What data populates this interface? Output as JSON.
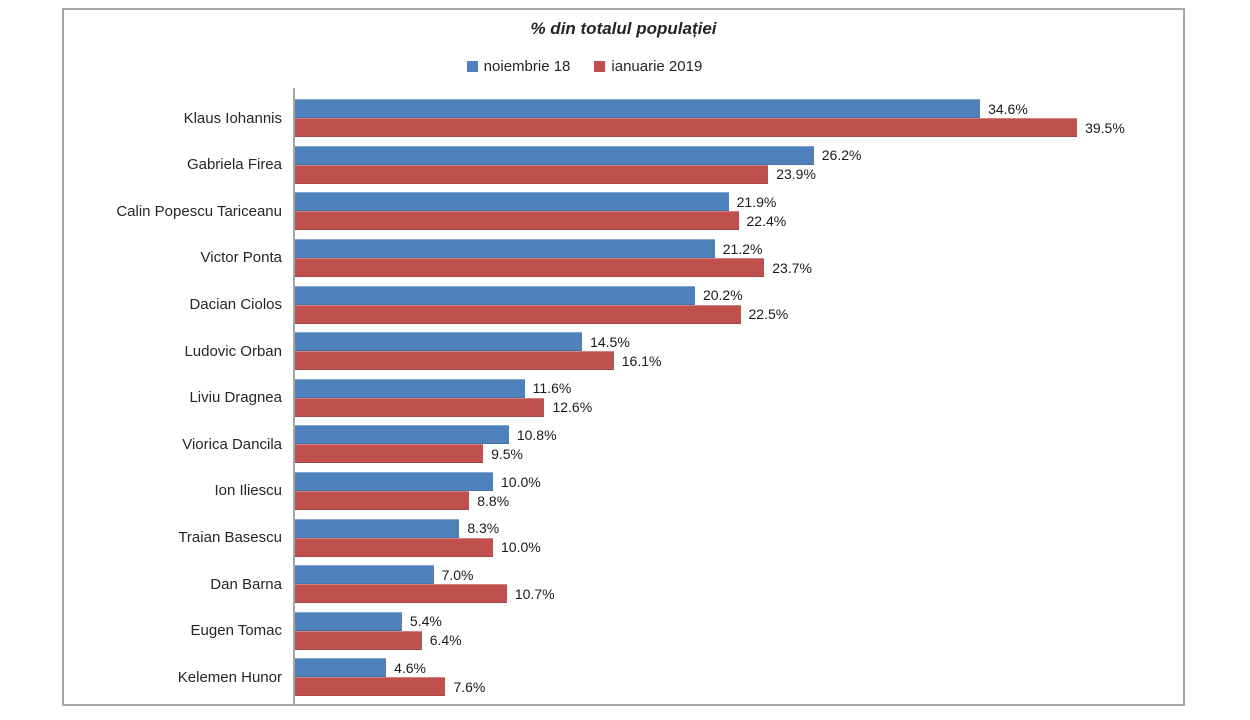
{
  "chart": {
    "colors": {
      "series1": "#4F81BD",
      "series2": "#C0504D",
      "frame": "#A6A6A6",
      "axis": "#A6A6A6",
      "text": "#262626"
    }
  },
  "chart_data": {
    "type": "bar",
    "orientation": "horizontal",
    "title": "% din totalul populației",
    "categories": [
      "Klaus Iohannis",
      "Gabriela Firea",
      "Calin Popescu Tariceanu",
      "Victor Ponta",
      "Dacian Ciolos",
      "Ludovic Orban",
      "Liviu Dragnea",
      "Viorica Dancila",
      "Ion Iliescu",
      "Traian Basescu",
      "Dan Barna",
      "Eugen Tomac",
      "Kelemen Hunor"
    ],
    "series": [
      {
        "name": "noiembrie 18",
        "color": "#4F81BD",
        "values": [
          34.6,
          26.2,
          21.9,
          21.2,
          20.2,
          14.5,
          11.6,
          10.8,
          10.0,
          8.3,
          7.0,
          5.4,
          4.6
        ]
      },
      {
        "name": "ianuarie 2019",
        "color": "#C0504D",
        "values": [
          39.5,
          23.9,
          22.4,
          23.7,
          22.5,
          16.1,
          12.6,
          9.5,
          8.8,
          10.0,
          10.7,
          6.4,
          7.6
        ]
      }
    ],
    "value_suffix": "%",
    "xlim": [
      0,
      45
    ],
    "legend_position": "top",
    "grid": false,
    "data_labels": true
  }
}
